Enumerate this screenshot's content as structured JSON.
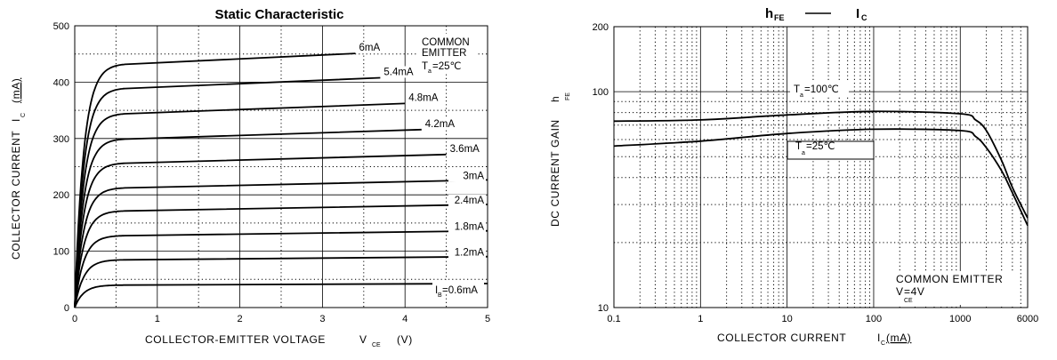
{
  "chart_data": [
    {
      "type": "line",
      "title": "Static Characteristic",
      "xlabel": "COLLECTOR-EMITTER VOLTAGE",
      "xlabel_symbol": "V",
      "xlabel_sub": "CE",
      "xlabel_unit": "(V)",
      "ylabel": "COLLECTOR CURRENT",
      "ylabel_symbol": "I",
      "ylabel_sub": "C",
      "ylabel_unit": "(mA)",
      "xlim": [
        0,
        5
      ],
      "ylim": [
        0,
        500
      ],
      "x_ticks": [
        "0",
        "1",
        "2",
        "3",
        "4",
        "5"
      ],
      "y_ticks": [
        "0",
        "100",
        "200",
        "300",
        "400",
        "500"
      ],
      "grid": true,
      "annotation": {
        "line1": "COMMON",
        "line2": "EMITTER",
        "ta_symbol": "T",
        "ta_sub": "a",
        "ta_value": "=25℃"
      },
      "series": [
        {
          "name": "6mA",
          "plateau": 433,
          "end_v": 3.4,
          "knee_v": 0.45
        },
        {
          "name": "5.4mA",
          "plateau": 390,
          "end_v": 3.7,
          "knee_v": 0.45
        },
        {
          "name": "4.8mA",
          "plateau": 345,
          "end_v": 4.0,
          "knee_v": 0.45
        },
        {
          "name": "4.2mA",
          "plateau": 300,
          "end_v": 4.2,
          "knee_v": 0.45
        },
        {
          "name": "3.6mA",
          "plateau": 257,
          "end_v": 4.5,
          "knee_v": 0.45
        },
        {
          "name": "3mA",
          "plateau": 213,
          "end_v": 5.0,
          "knee_v": 0.45
        },
        {
          "name": "2.4mA",
          "plateau": 172,
          "end_v": 5.0,
          "knee_v": 0.45
        },
        {
          "name": "1.8mA",
          "plateau": 128,
          "end_v": 5.0,
          "knee_v": 0.45
        },
        {
          "name": "1.2mA",
          "plateau": 85,
          "end_v": 5.0,
          "knee_v": 0.45
        },
        {
          "name": "0.6mA",
          "plateau": 40,
          "end_v": 5.0,
          "knee_v": 0.45
        }
      ],
      "last_label_prefix": "I",
      "last_label_sub": "B",
      "last_label_value": "=0.6mA"
    },
    {
      "type": "line",
      "title_parts": {
        "h": "h",
        "h_sub": "FE",
        "i": "I",
        "i_sub": "C"
      },
      "xlabel": "COLLECTOR  CURRENT",
      "xlabel_symbol": "I",
      "xlabel_sub": "C",
      "xlabel_unit": "(mA)",
      "ylabel": "DC CURRENT GAIN",
      "ylabel_symbol": "h",
      "ylabel_sub": "FE",
      "x_scale": "log",
      "y_scale": "log",
      "xlim": [
        0.1,
        6000
      ],
      "ylim": [
        10,
        200
      ],
      "x_ticks": [
        "0.1",
        "1",
        "10",
        "100",
        "1000",
        "6000"
      ],
      "y_ticks": [
        "10",
        "100",
        "200"
      ],
      "grid": true,
      "annotation": {
        "line1": "COMMON EMITTER",
        "vce_symbol": "V",
        "vce_sub": "CE",
        "vce_value": "=4V"
      },
      "series": [
        {
          "name": "Ta=100℃",
          "label_symbol": "T",
          "label_sub": "a",
          "label_value": "=100℃",
          "x": [
            0.1,
            1,
            10,
            100,
            1000,
            1500,
            2000,
            3000,
            4000,
            6000
          ],
          "y": [
            73,
            74,
            78,
            81,
            79,
            74,
            66,
            48,
            36,
            26
          ]
        },
        {
          "name": "Ta=25℃",
          "label_symbol": "T",
          "label_sub": "a",
          "label_value": "=25℃",
          "x": [
            0.1,
            1,
            10,
            100,
            1000,
            1500,
            2000,
            3000,
            4000,
            6000
          ],
          "y": [
            56,
            59,
            64,
            67,
            66,
            62,
            55,
            43,
            34,
            24
          ]
        }
      ]
    }
  ]
}
